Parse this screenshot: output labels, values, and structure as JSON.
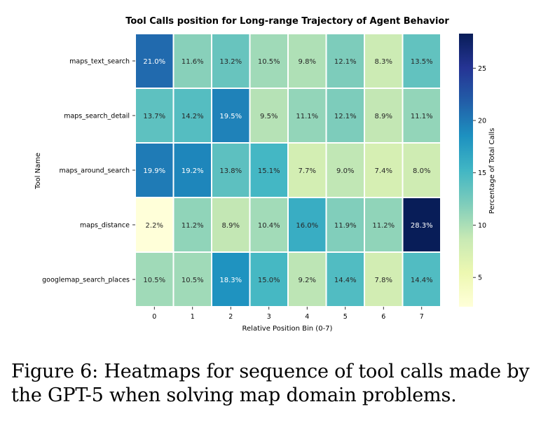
{
  "chart_data": {
    "type": "heatmap",
    "title": "Tool Calls position for Long-range Trajectory of Agent Behavior",
    "xlabel": "Relative Position Bin (0-7)",
    "ylabel": "Tool Name",
    "x_categories": [
      "0",
      "1",
      "2",
      "3",
      "4",
      "5",
      "6",
      "7"
    ],
    "y_categories": [
      "maps_text_search",
      "maps_search_detail",
      "maps_around_search",
      "maps_distance",
      "googlemap_search_places"
    ],
    "values": [
      [
        21.0,
        11.6,
        13.2,
        10.5,
        9.8,
        12.1,
        8.3,
        13.5
      ],
      [
        13.7,
        14.2,
        19.5,
        9.5,
        11.1,
        12.1,
        8.9,
        11.1
      ],
      [
        19.9,
        19.2,
        13.8,
        15.1,
        7.7,
        9.0,
        7.4,
        8.0
      ],
      [
        2.2,
        11.2,
        8.9,
        10.4,
        16.0,
        11.9,
        11.2,
        28.3
      ],
      [
        10.5,
        10.5,
        18.3,
        15.0,
        9.2,
        14.4,
        7.8,
        14.4
      ]
    ],
    "cell_labels": [
      [
        "21.0%",
        "11.6%",
        "13.2%",
        "10.5%",
        "9.8%",
        "12.1%",
        "8.3%",
        "13.5%"
      ],
      [
        "13.7%",
        "14.2%",
        "19.5%",
        "9.5%",
        "11.1%",
        "12.1%",
        "8.9%",
        "11.1%"
      ],
      [
        "19.9%",
        "19.2%",
        "13.8%",
        "15.1%",
        "7.7%",
        "9.0%",
        "7.4%",
        "8.0%"
      ],
      [
        "2.2%",
        "11.2%",
        "8.9%",
        "10.4%",
        "16.0%",
        "11.9%",
        "11.2%",
        "28.3%"
      ],
      [
        "10.5%",
        "10.5%",
        "18.3%",
        "15.0%",
        "9.2%",
        "14.4%",
        "7.8%",
        "14.4%"
      ]
    ],
    "colormap": "YlGnBu",
    "color_range": [
      2.2,
      28.3
    ],
    "colorbar": {
      "label": "Percentage of Total Calls",
      "ticks": [
        5,
        10,
        15,
        20,
        25
      ],
      "tick_labels": [
        "5",
        "10",
        "15",
        "20",
        "25"
      ]
    }
  },
  "caption": "Figure 6: Heatmaps for sequence of tool calls made by the GPT-5 when solving map domain problems."
}
